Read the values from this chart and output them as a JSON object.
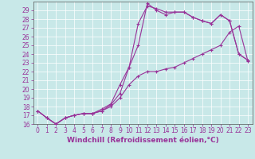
{
  "background_color": "#c8e8e8",
  "grid_color": "#b0d8d8",
  "line_color": "#993399",
  "xlabel": "Windchill (Refroidissement éolien,°C)",
  "xlabel_fontsize": 6.5,
  "tick_fontsize": 5.5,
  "xlim": [
    -0.5,
    23.5
  ],
  "ylim": [
    16,
    30
  ],
  "yticks": [
    16,
    17,
    18,
    19,
    20,
    21,
    22,
    23,
    24,
    25,
    26,
    27,
    28,
    29
  ],
  "xticks": [
    0,
    1,
    2,
    3,
    4,
    5,
    6,
    7,
    8,
    9,
    10,
    11,
    12,
    13,
    14,
    15,
    16,
    17,
    18,
    19,
    20,
    21,
    22,
    23
  ],
  "line1_x": [
    0,
    1,
    2,
    3,
    4,
    5,
    6,
    7,
    8,
    9,
    10,
    11,
    12,
    13,
    14,
    15,
    16,
    17,
    18,
    19,
    20,
    21,
    22,
    23
  ],
  "line1_y": [
    17.5,
    16.7,
    16.0,
    16.7,
    17.0,
    17.2,
    17.2,
    17.5,
    18.0,
    19.0,
    20.5,
    21.5,
    22.0,
    22.0,
    22.3,
    22.5,
    23.0,
    23.5,
    24.0,
    24.5,
    25.0,
    26.5,
    27.2,
    23.2
  ],
  "line2_x": [
    0,
    1,
    2,
    3,
    4,
    5,
    6,
    7,
    8,
    9,
    10,
    11,
    12,
    13,
    14,
    15,
    16,
    17,
    18,
    19,
    20,
    21,
    22,
    23
  ],
  "line2_y": [
    17.5,
    16.7,
    16.0,
    16.7,
    17.0,
    17.2,
    17.2,
    17.5,
    18.2,
    19.5,
    22.5,
    27.5,
    29.5,
    29.2,
    28.8,
    28.8,
    28.8,
    28.2,
    27.8,
    27.5,
    28.5,
    27.8,
    24.0,
    23.3
  ],
  "line3_x": [
    0,
    1,
    2,
    3,
    4,
    5,
    6,
    7,
    8,
    9,
    10,
    11,
    12,
    13,
    14,
    15,
    16,
    17,
    18,
    19,
    20,
    21,
    22,
    23
  ],
  "line3_y": [
    17.5,
    16.7,
    16.0,
    16.7,
    17.0,
    17.2,
    17.2,
    17.7,
    18.3,
    20.5,
    22.5,
    25.0,
    29.8,
    29.0,
    28.5,
    28.8,
    28.8,
    28.2,
    27.8,
    27.5,
    28.5,
    27.8,
    24.0,
    23.3
  ]
}
